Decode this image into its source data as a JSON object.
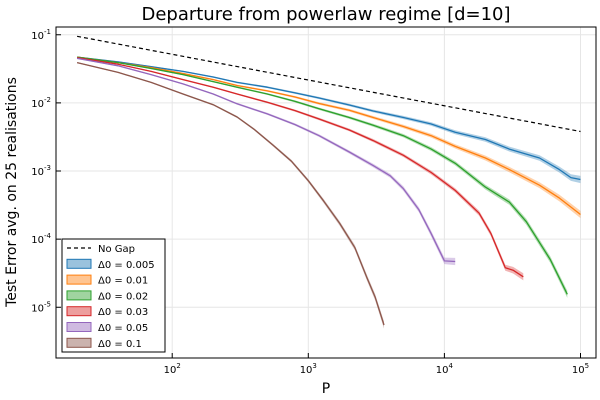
{
  "chart_data": {
    "type": "line",
    "title": "Departure from powerlaw regime [d=10]",
    "xlabel": "P",
    "ylabel": "Test Error avg. on 25 realisations",
    "xscale": "log",
    "yscale": "log",
    "xlim": [
      14,
      130000
    ],
    "ylim": [
      1.8e-06,
      0.13
    ],
    "grid": true,
    "legend_position": "bottom-left",
    "x_ticks": [
      {
        "base": "10",
        "exp": "2",
        "value": 100
      },
      {
        "base": "10",
        "exp": "3",
        "value": 1000
      },
      {
        "base": "10",
        "exp": "4",
        "value": 10000
      },
      {
        "base": "10",
        "exp": "5",
        "value": 100000
      }
    ],
    "y_ticks": [
      {
        "base": "10",
        "exp": "-5",
        "value": 1e-05
      },
      {
        "base": "10",
        "exp": "-4",
        "value": 0.0001
      },
      {
        "base": "10",
        "exp": "-3",
        "value": 0.001
      },
      {
        "base": "10",
        "exp": "-2",
        "value": 0.01
      },
      {
        "base": "10",
        "exp": "-1",
        "value": 0.1
      }
    ],
    "series": [
      {
        "name": "No Gap",
        "color": "#000000",
        "style": "dashed",
        "x": [
          20,
          100000
        ],
        "y": [
          0.095,
          0.0038
        ]
      },
      {
        "name": "Δ0 = 0.005",
        "color": "#1f77b4",
        "style": "band",
        "x": [
          20,
          40,
          70,
          120,
          200,
          300,
          500,
          800,
          1200,
          2000,
          3000,
          5000,
          8000,
          12000,
          20000,
          30000,
          50000,
          70000,
          85000,
          100000
        ],
        "y": [
          0.047,
          0.04,
          0.034,
          0.029,
          0.024,
          0.02,
          0.017,
          0.014,
          0.0118,
          0.0093,
          0.0076,
          0.0061,
          0.0049,
          0.0037,
          0.0029,
          0.0021,
          0.00155,
          0.00105,
          0.0008,
          0.00075
        ]
      },
      {
        "name": "Δ0 = 0.01",
        "color": "#ff7f0e",
        "style": "band",
        "x": [
          20,
          40,
          70,
          120,
          200,
          300,
          500,
          800,
          1200,
          2000,
          3000,
          5000,
          8000,
          12000,
          20000,
          30000,
          50000,
          70000,
          100000
        ],
        "y": [
          0.047,
          0.039,
          0.033,
          0.027,
          0.022,
          0.018,
          0.015,
          0.0122,
          0.0098,
          0.0078,
          0.0061,
          0.0045,
          0.0033,
          0.0023,
          0.00155,
          0.00105,
          0.00062,
          0.0004,
          0.00023
        ]
      },
      {
        "name": "Δ0 = 0.02",
        "color": "#2ca02c",
        "style": "band",
        "x": [
          20,
          40,
          70,
          120,
          200,
          300,
          500,
          800,
          1200,
          2000,
          3000,
          5000,
          8000,
          12000,
          20000,
          30000,
          40000,
          60000,
          80000
        ],
        "y": [
          0.047,
          0.039,
          0.032,
          0.026,
          0.0205,
          0.017,
          0.0135,
          0.0105,
          0.0082,
          0.0061,
          0.0047,
          0.0033,
          0.0021,
          0.0013,
          0.00058,
          0.00035,
          0.00018,
          5e-05,
          1.55e-05
        ]
      },
      {
        "name": "Δ0 = 0.03",
        "color": "#d62728",
        "style": "band",
        "x": [
          20,
          40,
          70,
          120,
          200,
          300,
          500,
          800,
          1200,
          2000,
          3000,
          5000,
          8000,
          12000,
          18000,
          22000,
          28000,
          32000,
          38000
        ],
        "y": [
          0.046,
          0.037,
          0.029,
          0.022,
          0.017,
          0.0135,
          0.0102,
          0.0077,
          0.0058,
          0.004,
          0.0028,
          0.0017,
          0.00095,
          0.00052,
          0.00024,
          0.00012,
          3.8e-05,
          3.5e-05,
          2.8e-05
        ]
      },
      {
        "name": "Δ0 = 0.05",
        "color": "#9467bd",
        "style": "band",
        "x": [
          20,
          40,
          70,
          120,
          200,
          300,
          500,
          800,
          1200,
          2000,
          3000,
          4000,
          5000,
          6500,
          8000,
          10000,
          12000
        ],
        "y": [
          0.045,
          0.035,
          0.026,
          0.019,
          0.0135,
          0.0097,
          0.0069,
          0.0048,
          0.0033,
          0.0019,
          0.0012,
          0.00085,
          0.00055,
          0.00027,
          0.00012,
          4.8e-05,
          4.7e-05
        ]
      },
      {
        "name": "Δ0 = 0.1",
        "color": "#8c564b",
        "style": "band",
        "x": [
          20,
          40,
          70,
          120,
          200,
          300,
          400,
          550,
          750,
          1000,
          1300,
          1700,
          2200,
          2700,
          3100,
          3600
        ],
        "y": [
          0.039,
          0.028,
          0.02,
          0.0135,
          0.0094,
          0.0062,
          0.0041,
          0.0024,
          0.0014,
          0.00072,
          0.00036,
          0.00017,
          7.5e-05,
          2.7e-05,
          1.4e-05,
          5.5e-06
        ]
      }
    ]
  }
}
